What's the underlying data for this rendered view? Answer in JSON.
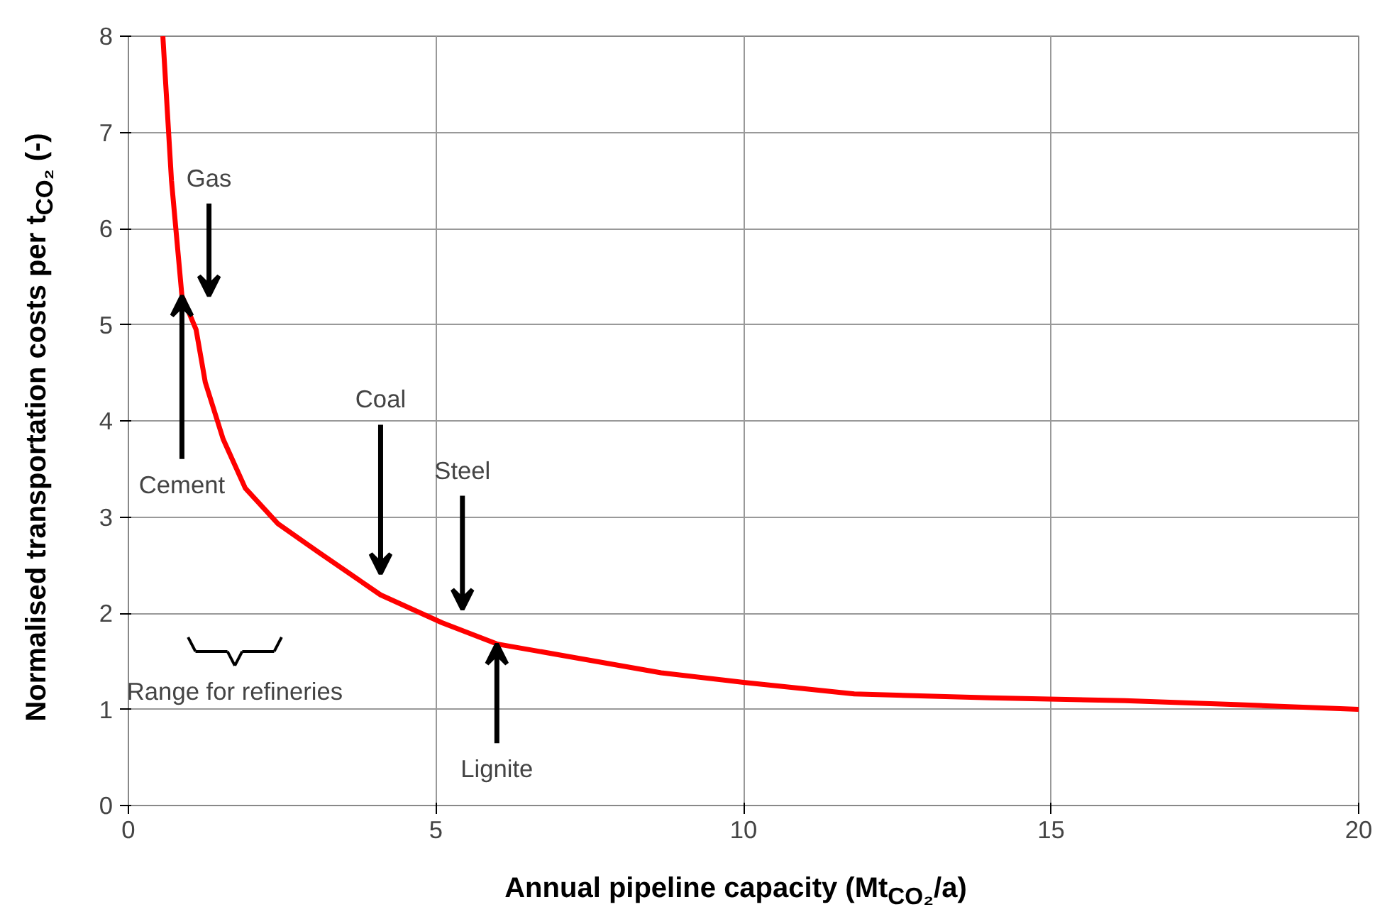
{
  "chart_data": {
    "type": "line",
    "xlabel": "Annual pipeline capacity (Mt$_{CO₂}$/a)",
    "ylabel": "Normalised transportation costs per t$_{CO₂}$ (-)",
    "xlim": [
      0,
      20
    ],
    "ylim": [
      0,
      8
    ],
    "xticks": [
      0,
      5,
      10,
      15,
      20
    ],
    "yticks": [
      0,
      1,
      2,
      3,
      4,
      5,
      6,
      7,
      8
    ],
    "grid": true,
    "series": [
      {
        "color": "#ff0000",
        "x": [
          0.56,
          0.7,
          0.87,
          1.1,
          1.25,
          1.54,
          1.9,
          2.43,
          3.1,
          4.1,
          5.1,
          5.99,
          7.33,
          8.66,
          10,
          11.8,
          14,
          16.2,
          18,
          20
        ],
        "values": [
          8,
          6.5,
          5.3,
          4.95,
          4.4,
          3.81,
          3.3,
          2.93,
          2.63,
          2.19,
          1.9,
          1.68,
          1.53,
          1.38,
          1.28,
          1.16,
          1.12,
          1.09,
          1.05,
          1.0
        ]
      }
    ],
    "annotations": [
      "Gas",
      {
        "text": "Cement",
        "x": 0.87,
        "y": 5.3
      },
      "Coal",
      "Steel",
      {
        "text": "Lignite",
        "x": 5.99,
        "y": 1.68
      },
      "Range for refineries"
    ]
  }
}
